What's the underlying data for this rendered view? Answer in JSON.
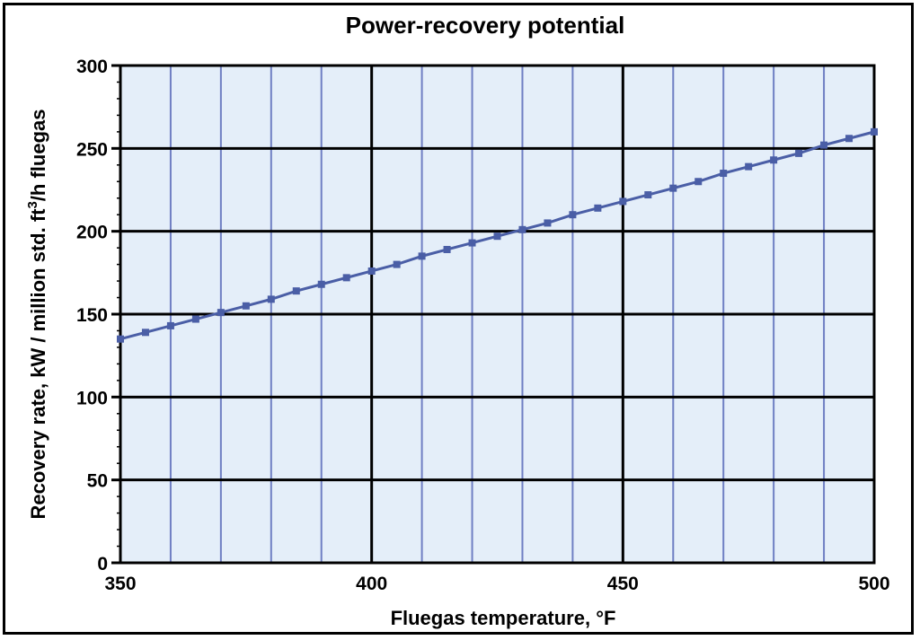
{
  "chart_data": {
    "type": "line",
    "title": "Power-recovery potential",
    "xlabel": "Fluegas temperature, °F",
    "ylabel_parts": [
      "Recovery rate, kW / million std. ft",
      "3",
      "/h fluegas"
    ],
    "xlim": [
      350,
      500
    ],
    "ylim": [
      0,
      300
    ],
    "x_ticks": [
      350,
      400,
      450,
      500
    ],
    "y_ticks": [
      0,
      50,
      100,
      150,
      200,
      250,
      300
    ],
    "x_minor_gridlines": [
      360,
      370,
      380,
      390,
      410,
      420,
      430,
      440,
      460,
      470,
      480,
      490
    ],
    "x_major_gridlines": [
      400,
      450
    ],
    "y_gridlines": [
      50,
      100,
      150,
      200,
      250
    ],
    "grid": true,
    "colors": {
      "plot_background": "#e4eef9",
      "series_line": "#4a5ea6",
      "minor_grid": "#6f7fc3",
      "major_grid": "#000000"
    },
    "series": [
      {
        "x": [
          350,
          355,
          360,
          365,
          370,
          375,
          380,
          385,
          390,
          395,
          400,
          405,
          410,
          415,
          420,
          425,
          430,
          435,
          440,
          445,
          450,
          455,
          460,
          465,
          470,
          475,
          480,
          485,
          490,
          495,
          500
        ],
        "values": [
          135,
          139,
          143,
          147,
          151,
          155,
          159,
          164,
          168,
          172,
          176,
          180,
          185,
          189,
          193,
          197,
          201,
          205,
          210,
          214,
          218,
          222,
          226,
          230,
          235,
          239,
          243,
          247,
          252,
          256,
          260
        ]
      }
    ]
  }
}
